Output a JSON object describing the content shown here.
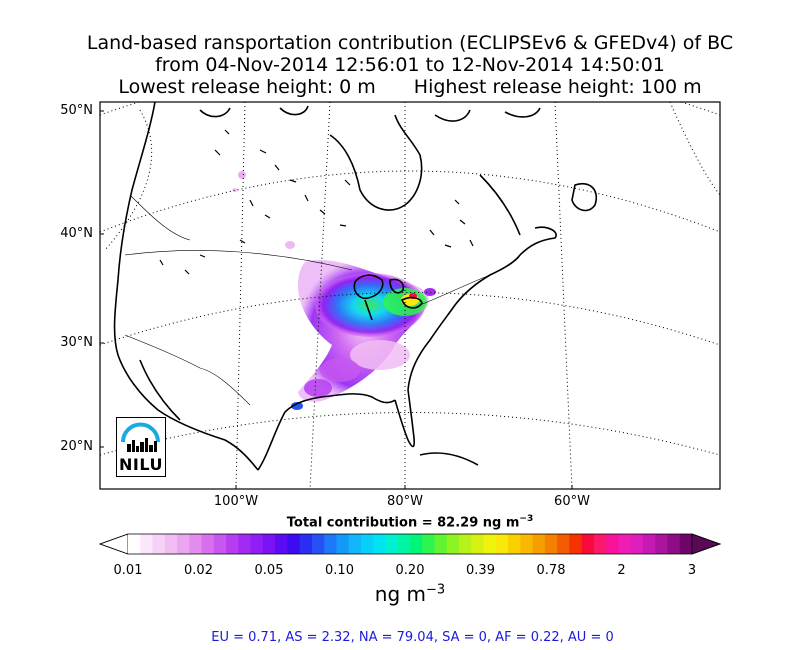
{
  "title": {
    "line1": "Land-based ransportation contribution (ECLIPSEv6 & GFEDv4) of BC",
    "line2": "from 04-Nov-2014 12:56:01 to 12-Nov-2014 14:50:01",
    "lowest": "Lowest release height: 0 m",
    "highest": "Highest release height: 100 m"
  },
  "map": {
    "lat_labels": [
      "50°N",
      "40°N",
      "30°N",
      "20°N"
    ],
    "lon_labels": [
      "100°W",
      "80°W",
      "60°W"
    ],
    "logo_text": "NILU"
  },
  "total": {
    "prefix": "Total contribution = 82.29 ng m",
    "exp": "−3"
  },
  "colorbar": {
    "ticks": [
      "0.01",
      "0.02",
      "0.05",
      "0.10",
      "0.20",
      "0.39",
      "0.78",
      "2",
      "3"
    ],
    "colors": [
      "#ffffff",
      "#fbe6fb",
      "#f7d2f7",
      "#f1bdf3",
      "#eaa6f0",
      "#e08ded",
      "#d870ee",
      "#c857f0",
      "#b63df2",
      "#a32af3",
      "#8f1ff4",
      "#7a12f4",
      "#5c0cf2",
      "#3c0bf0",
      "#2b2df2",
      "#2551f5",
      "#1e78f7",
      "#1599f8",
      "#10b6f9",
      "#08cff8",
      "#00e3f0",
      "#00f0d2",
      "#00f4a5",
      "#00f47a",
      "#2ef44d",
      "#63f431",
      "#8ff222",
      "#b6f11a",
      "#d7f212",
      "#eef30c",
      "#fae80a",
      "#fad000",
      "#f8b700",
      "#f69d00",
      "#f48000",
      "#f35c00",
      "#f53300",
      "#f80a3a",
      "#fa1a6b",
      "#f9139a",
      "#f01cb3",
      "#dc1fbd",
      "#c51ab4",
      "#ab149f",
      "#8e0c86",
      "#6e0467"
    ],
    "unit_prefix": "ng m",
    "unit_exp": "−3"
  },
  "regions": "EU = 0.71,  AS = 2.32,  NA = 79.04,  SA = 0,  AF = 0.22,  AU = 0"
}
